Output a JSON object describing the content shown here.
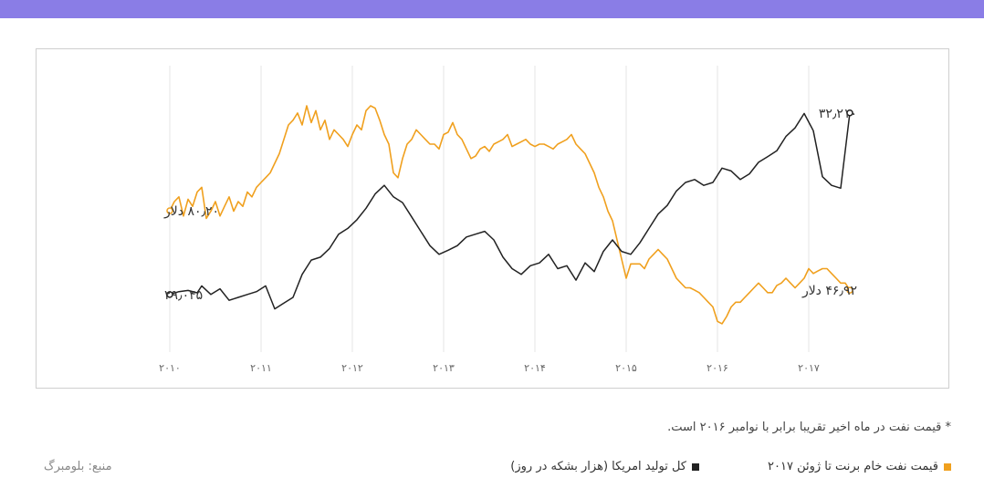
{
  "colors": {
    "header": "#8a7de6",
    "oil": "#f0a01e",
    "production": "#222222",
    "grid": "#e4e4e4",
    "tick_text": "#666666",
    "label_text": "#333333"
  },
  "note": "* قیمت نفت در ماه اخیر تقریبا برابر با نوامبر ۲۰۱۶ است.",
  "legend": {
    "oil": "قیمت نفت خام برنت تا ژوئن ۲۰۱۷",
    "production": "کل تولید امریکا (هزار بشکه در روز)"
  },
  "source": "منبع: بلومبرگ",
  "chart_data": {
    "type": "line",
    "x_ticks": [
      "۲۰۱۰",
      "۲۰۱۱",
      "۲۰۱۲",
      "۲۰۱۳",
      "۲۰۱۴",
      "۲۰۱۵",
      "۲۰۱۶",
      "۲۰۱۷"
    ],
    "x_tick_values": [
      2010,
      2011,
      2012,
      2013,
      2014,
      2015,
      2016,
      2017
    ],
    "xlim": [
      2010,
      2017.5
    ],
    "grid": "vertical",
    "labels": {
      "oil_start": "۸۰٫۲۰ دلار",
      "oil_end": "۴۶٫۹۲ دلار",
      "prod_start": "۲۹٫۰۴۵",
      "prod_end": "۳۲٫۲۱۰"
    },
    "series": [
      {
        "key": "oil",
        "ylim": [
          20,
          140
        ],
        "x": [
          2010.0,
          2010.05,
          2010.1,
          2010.15,
          2010.2,
          2010.25,
          2010.3,
          2010.35,
          2010.4,
          2010.45,
          2010.5,
          2010.55,
          2010.6,
          2010.65,
          2010.7,
          2010.75,
          2010.8,
          2010.85,
          2010.9,
          2010.95,
          2011.0,
          2011.05,
          2011.1,
          2011.15,
          2011.2,
          2011.25,
          2011.3,
          2011.35,
          2011.4,
          2011.45,
          2011.5,
          2011.55,
          2011.6,
          2011.65,
          2011.7,
          2011.75,
          2011.8,
          2011.85,
          2011.9,
          2011.95,
          2012.0,
          2012.05,
          2012.1,
          2012.15,
          2012.2,
          2012.25,
          2012.3,
          2012.35,
          2012.4,
          2012.45,
          2012.5,
          2012.55,
          2012.6,
          2012.65,
          2012.7,
          2012.75,
          2012.8,
          2012.85,
          2012.9,
          2012.95,
          2013.0,
          2013.05,
          2013.1,
          2013.15,
          2013.2,
          2013.25,
          2013.3,
          2013.35,
          2013.4,
          2013.45,
          2013.5,
          2013.55,
          2013.6,
          2013.65,
          2013.7,
          2013.75,
          2013.8,
          2013.85,
          2013.9,
          2013.95,
          2014.0,
          2014.05,
          2014.1,
          2014.15,
          2014.2,
          2014.25,
          2014.3,
          2014.35,
          2014.4,
          2014.45,
          2014.5,
          2014.55,
          2014.6,
          2014.65,
          2014.7,
          2014.75,
          2014.8,
          2014.85,
          2014.9,
          2014.95,
          2015.0,
          2015.05,
          2015.1,
          2015.15,
          2015.2,
          2015.25,
          2015.3,
          2015.35,
          2015.4,
          2015.45,
          2015.5,
          2015.55,
          2015.6,
          2015.65,
          2015.7,
          2015.75,
          2015.8,
          2015.85,
          2015.9,
          2015.95,
          2016.0,
          2016.05,
          2016.1,
          2016.15,
          2016.2,
          2016.25,
          2016.3,
          2016.35,
          2016.4,
          2016.45,
          2016.5,
          2016.55,
          2016.6,
          2016.65,
          2016.7,
          2016.75,
          2016.8,
          2016.85,
          2016.9,
          2016.95,
          2017.0,
          2017.05,
          2017.1,
          2017.15,
          2017.2,
          2017.25,
          2017.3,
          2017.35,
          2017.4,
          2017.45
        ],
        "values": [
          80.2,
          84,
          86,
          78,
          85,
          82,
          88,
          90,
          77,
          80,
          84,
          78,
          82,
          86,
          80,
          84,
          82,
          88,
          86,
          90,
          92,
          94,
          96,
          100,
          104,
          110,
          116,
          118,
          121,
          116,
          124,
          117,
          122,
          114,
          118,
          110,
          114,
          112,
          110,
          107,
          112,
          116,
          114,
          122,
          124,
          123,
          118,
          112,
          108,
          96,
          94,
          102,
          108,
          110,
          114,
          112,
          110,
          108,
          108,
          106,
          112,
          113,
          117,
          112,
          110,
          106,
          102,
          103,
          106,
          107,
          105,
          108,
          109,
          110,
          112,
          107,
          108,
          109,
          110,
          108,
          107,
          108,
          108,
          107,
          106,
          108,
          109,
          110,
          112,
          108,
          106,
          104,
          100,
          96,
          90,
          86,
          80,
          76,
          68,
          60,
          52,
          58,
          58,
          58,
          56,
          60,
          62,
          64,
          62,
          60,
          56,
          52,
          50,
          48,
          48,
          47,
          46,
          44,
          42,
          40,
          34,
          33,
          36,
          40,
          42,
          42,
          44,
          46,
          48,
          50,
          48,
          46,
          46,
          49,
          50,
          52,
          50,
          48,
          50,
          52,
          56,
          54,
          55,
          56,
          56,
          54,
          52,
          50,
          50,
          47
        ]
      },
      {
        "key": "production",
        "ylim": [
          28,
          33
        ],
        "x": [
          2010.0,
          2010.1,
          2010.2,
          2010.3,
          2010.35,
          2010.45,
          2010.55,
          2010.65,
          2010.75,
          2010.85,
          2010.95,
          2011.05,
          2011.15,
          2011.25,
          2011.35,
          2011.45,
          2011.55,
          2011.65,
          2011.75,
          2011.85,
          2011.95,
          2012.05,
          2012.15,
          2012.25,
          2012.35,
          2012.45,
          2012.55,
          2012.65,
          2012.75,
          2012.85,
          2012.95,
          2013.05,
          2013.15,
          2013.25,
          2013.35,
          2013.45,
          2013.55,
          2013.65,
          2013.75,
          2013.85,
          2013.95,
          2014.05,
          2014.15,
          2014.25,
          2014.35,
          2014.45,
          2014.55,
          2014.65,
          2014.75,
          2014.85,
          2014.95,
          2015.05,
          2015.15,
          2015.25,
          2015.35,
          2015.45,
          2015.55,
          2015.65,
          2015.75,
          2015.85,
          2015.95,
          2016.05,
          2016.15,
          2016.25,
          2016.35,
          2016.45,
          2016.55,
          2016.65,
          2016.75,
          2016.85,
          2016.95,
          2017.05,
          2017.15,
          2017.25,
          2017.35,
          2017.45
        ],
        "values": [
          29.05,
          29.1,
          29.12,
          29.08,
          29.2,
          29.05,
          29.15,
          28.95,
          29.0,
          29.05,
          29.1,
          29.2,
          28.8,
          28.9,
          29.0,
          29.4,
          29.65,
          29.7,
          29.85,
          30.1,
          30.2,
          30.35,
          30.55,
          30.8,
          30.95,
          30.75,
          30.65,
          30.4,
          30.15,
          29.9,
          29.75,
          29.82,
          29.9,
          30.05,
          30.1,
          30.15,
          30.0,
          29.7,
          29.5,
          29.4,
          29.55,
          29.6,
          29.75,
          29.5,
          29.55,
          29.3,
          29.6,
          29.45,
          29.8,
          30.0,
          29.8,
          29.75,
          29.95,
          30.2,
          30.45,
          30.6,
          30.85,
          31.0,
          31.05,
          30.95,
          31.0,
          31.25,
          31.2,
          31.05,
          31.15,
          31.35,
          31.45,
          31.55,
          31.8,
          31.95,
          32.2,
          31.9,
          31.1,
          30.95,
          30.9,
          32.21
        ]
      }
    ]
  }
}
